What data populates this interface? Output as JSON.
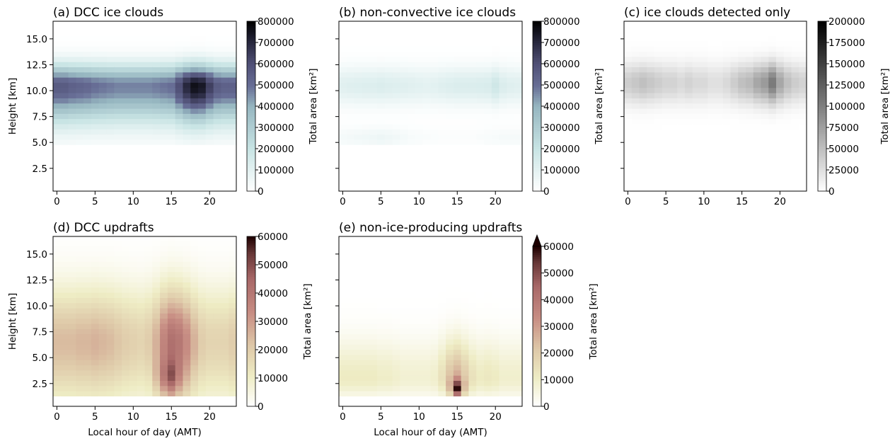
{
  "chart_data": [
    {
      "type": "heatmap",
      "panel": "a",
      "title": "(a) DCC ice clouds",
      "xlabel": "",
      "ylabel": "Height [km]",
      "xlim": [
        -0.5,
        23.5
      ],
      "ylim": [
        0.3,
        16.7
      ],
      "xticks": [
        "0",
        "5",
        "10",
        "15",
        "20"
      ],
      "yticks": [
        "2.5",
        "5.0",
        "7.5",
        "10.0",
        "12.5",
        "15.0"
      ],
      "colorbar": {
        "label": "Total area [km²]",
        "ticks": [
          "0",
          "100000",
          "200000",
          "300000",
          "400000",
          "500000",
          "600000",
          "700000",
          "800000"
        ],
        "range": [
          0,
          800000
        ],
        "colormap": "bone_r",
        "extend_max": false
      },
      "profile": {
        "height_center_km": 10.5,
        "height_sigma_low_km": 2.4,
        "height_sigma_high_km": 1.4,
        "height_floor_km": 4.7,
        "hourly_peak": [
          560000,
          560000,
          540000,
          530000,
          520000,
          500000,
          490000,
          480000,
          470000,
          470000,
          470000,
          470000,
          470000,
          480000,
          490000,
          500000,
          600000,
          700000,
          760000,
          740000,
          640000,
          560000,
          540000,
          540000
        ]
      }
    },
    {
      "type": "heatmap",
      "panel": "b",
      "title": "(b) non-convective ice clouds",
      "xlabel": "",
      "ylabel": "",
      "xlim": [
        -0.5,
        23.5
      ],
      "ylim": [
        0.3,
        16.7
      ],
      "xticks": [
        "0",
        "5",
        "10",
        "15",
        "20"
      ],
      "yticks": [],
      "colorbar": {
        "label": "Total area [km²]",
        "ticks": [
          "0",
          "100000",
          "200000",
          "300000",
          "400000",
          "500000",
          "600000",
          "700000",
          "800000"
        ],
        "range": [
          0,
          800000
        ],
        "colormap": "bone_r",
        "extend_max": false
      },
      "profile": {
        "height_center_km": 10.5,
        "height_sigma_low_km": 1.3,
        "height_sigma_high_km": 1.3,
        "height_floor_km": 4.8,
        "hourly_peak": [
          110000,
          115000,
          120000,
          125000,
          125000,
          130000,
          125000,
          120000,
          115000,
          110000,
          105000,
          100000,
          105000,
          115000,
          125000,
          130000,
          130000,
          130000,
          135000,
          140000,
          175000,
          130000,
          115000,
          110000
        ],
        "lower_layer": {
          "height_km": 5.5,
          "sigma_km": 0.7,
          "hourly_peak": [
            40000,
            45000,
            50000,
            55000,
            60000,
            65000,
            60000,
            50000,
            40000,
            30000,
            25000,
            20000,
            18000,
            15000,
            15000,
            15000,
            15000,
            15000,
            20000,
            25000,
            30000,
            35000,
            35000,
            35000
          ]
        }
      }
    },
    {
      "type": "heatmap",
      "panel": "c",
      "title": "(c) ice clouds detected only",
      "xlabel": "",
      "ylabel": "",
      "xlim": [
        -0.5,
        23.5
      ],
      "ylim": [
        0.3,
        16.7
      ],
      "xticks": [
        "0",
        "5",
        "10",
        "15",
        "20"
      ],
      "yticks": [],
      "colorbar": {
        "label": "Total area [km²]",
        "ticks": [
          "0",
          "25000",
          "50000",
          "75000",
          "100000",
          "125000",
          "150000",
          "175000",
          "200000"
        ],
        "range": [
          0,
          200000
        ],
        "colormap": "gray_r",
        "extend_max": false
      },
      "profile": {
        "height_center_km": 10.8,
        "height_sigma_low_km": 1.4,
        "height_sigma_high_km": 1.3,
        "height_floor_km": 5.0,
        "hourly_peak": [
          40000,
          45000,
          50000,
          45000,
          40000,
          35000,
          35000,
          30000,
          35000,
          30000,
          30000,
          25000,
          25000,
          30000,
          40000,
          50000,
          55000,
          70000,
          80000,
          105000,
          70000,
          50000,
          40000,
          35000
        ]
      }
    },
    {
      "type": "heatmap",
      "panel": "d",
      "title": "(d) DCC updrafts",
      "xlabel": "Local hour of day (AMT)",
      "ylabel": "Height [km]",
      "xlim": [
        -0.5,
        23.5
      ],
      "ylim": [
        0.3,
        16.7
      ],
      "xticks": [
        "0",
        "5",
        "10",
        "15",
        "20"
      ],
      "yticks": [
        "2.5",
        "5.0",
        "7.5",
        "10.0",
        "12.5",
        "15.0"
      ],
      "colorbar": {
        "label": "Total area [km²]",
        "ticks": [
          "0",
          "10000",
          "20000",
          "30000",
          "40000",
          "50000",
          "60000"
        ],
        "range": [
          0,
          60000
        ],
        "colormap": "pink_r",
        "extend_max": false
      },
      "profile": {
        "height_center_km": 6.5,
        "height_sigma_low_km": 4.0,
        "height_sigma_high_km": 3.6,
        "height_floor_km": 1.2,
        "hourly_peak": [
          24000,
          24000,
          24000,
          25000,
          25000,
          26000,
          25000,
          24000,
          22000,
          20000,
          19000,
          18000,
          20000,
          26000,
          36000,
          42000,
          40000,
          34000,
          26000,
          20000,
          18000,
          18000,
          18000,
          20000
        ],
        "low_maximum": {
          "height_km": 3.0,
          "sigma_km": 1.2,
          "hourly_peak": [
            0,
            0,
            0,
            0,
            0,
            0,
            0,
            0,
            0,
            0,
            0,
            0,
            0,
            6000,
            14000,
            20000,
            8000,
            2000,
            0,
            0,
            0,
            0,
            0,
            0
          ]
        }
      }
    },
    {
      "type": "heatmap",
      "panel": "e",
      "title": "(e) non-ice-producing updrafts",
      "xlabel": "Local hour of day (AMT)",
      "ylabel": "",
      "xlim": [
        -0.5,
        23.5
      ],
      "ylim": [
        0.3,
        16.7
      ],
      "xticks": [
        "0",
        "5",
        "10",
        "15",
        "20"
      ],
      "yticks": [],
      "colorbar": {
        "label": "Total area [km²]",
        "ticks": [
          "0",
          "10000",
          "20000",
          "30000",
          "40000",
          "50000",
          "60000"
        ],
        "range": [
          0,
          60000
        ],
        "colormap": "pink_r",
        "extend_max": true
      },
      "profile": {
        "height_center_km": 3.0,
        "height_sigma_low_km": 1.2,
        "height_sigma_high_km": 2.6,
        "height_floor_km": 1.1,
        "hourly_peak": [
          11000,
          11000,
          11000,
          11000,
          11000,
          10000,
          10000,
          9000,
          8000,
          8000,
          8000,
          8000,
          9000,
          14000,
          22000,
          26000,
          20000,
          14000,
          11000,
          12000,
          11000,
          9000,
          9000,
          9000
        ],
        "low_maximum": {
          "height_km": 2.0,
          "sigma_km": 0.6,
          "hourly_peak": [
            0,
            0,
            0,
            0,
            0,
            0,
            0,
            0,
            0,
            0,
            0,
            0,
            0,
            0,
            8000,
            40000,
            8000,
            0,
            0,
            0,
            0,
            0,
            0,
            0
          ]
        }
      }
    }
  ]
}
